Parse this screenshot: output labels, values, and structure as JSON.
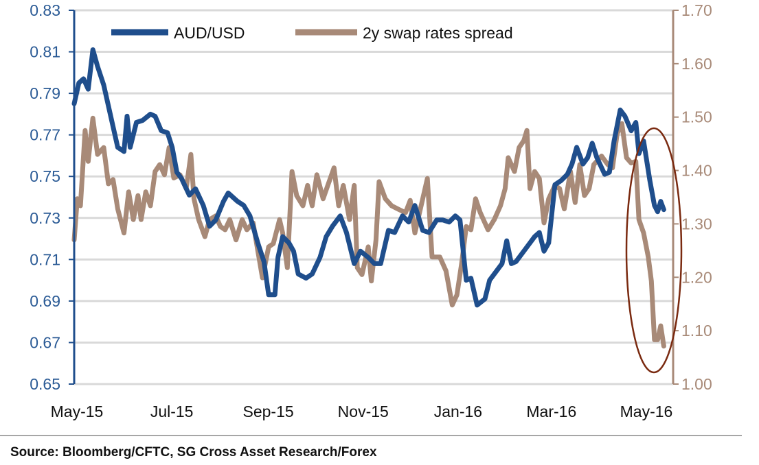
{
  "chart_data": {
    "type": "line",
    "title": "",
    "source": "Source: Bloomberg/CFTC, SG Cross Asset Research/Forex",
    "grid": true,
    "legend_placement": "top",
    "x_ticks": [
      "May-15",
      "Jul-15",
      "Sep-15",
      "Nov-15",
      "Jan-16",
      "Mar-16",
      "May-16"
    ],
    "x_tick_dates": [
      "2015-05-01",
      "2015-07-01",
      "2015-09-01",
      "2015-11-01",
      "2016-01-01",
      "2016-03-01",
      "2016-05-01"
    ],
    "y_left": {
      "ylim": [
        0.65,
        0.83
      ],
      "ticks": [
        "0.65",
        "0.67",
        "0.69",
        "0.71",
        "0.73",
        "0.75",
        "0.77",
        "0.79",
        "0.81",
        "0.83"
      ]
    },
    "y_right": {
      "ylim": [
        1.0,
        1.7
      ],
      "ticks": [
        "1.00",
        "1.10",
        "1.20",
        "1.30",
        "1.40",
        "1.50",
        "1.60",
        "1.70"
      ]
    },
    "annotation": {
      "type": "ellipse",
      "around": "late Apr-16 to mid May-16 divergence",
      "color": "#7a2a10"
    },
    "series": [
      {
        "name": "AUD/USD",
        "axis": "left",
        "color": "#1f4e8c",
        "points": [
          [
            "2015-05-01",
            0.785
          ],
          [
            "2015-05-04",
            0.795
          ],
          [
            "2015-05-07",
            0.797
          ],
          [
            "2015-05-10",
            0.792
          ],
          [
            "2015-05-13",
            0.811
          ],
          [
            "2015-05-16",
            0.803
          ],
          [
            "2015-05-20",
            0.794
          ],
          [
            "2015-05-23",
            0.784
          ],
          [
            "2015-05-26",
            0.774
          ],
          [
            "2015-05-29",
            0.764
          ],
          [
            "2015-06-02",
            0.762
          ],
          [
            "2015-06-04",
            0.779
          ],
          [
            "2015-06-06",
            0.764
          ],
          [
            "2015-06-10",
            0.776
          ],
          [
            "2015-06-14",
            0.777
          ],
          [
            "2015-06-19",
            0.78
          ],
          [
            "2015-06-22",
            0.779
          ],
          [
            "2015-06-26",
            0.772
          ],
          [
            "2015-06-30",
            0.771
          ],
          [
            "2015-07-03",
            0.764
          ],
          [
            "2015-07-06",
            0.752
          ],
          [
            "2015-07-09",
            0.749
          ],
          [
            "2015-07-14",
            0.741
          ],
          [
            "2015-07-18",
            0.744
          ],
          [
            "2015-07-23",
            0.736
          ],
          [
            "2015-07-27",
            0.726
          ],
          [
            "2015-07-31",
            0.729
          ],
          [
            "2015-08-05",
            0.738
          ],
          [
            "2015-08-08",
            0.742
          ],
          [
            "2015-08-14",
            0.738
          ],
          [
            "2015-08-18",
            0.736
          ],
          [
            "2015-08-22",
            0.731
          ],
          [
            "2015-08-27",
            0.718
          ],
          [
            "2015-08-31",
            0.709
          ],
          [
            "2015-09-03",
            0.693
          ],
          [
            "2015-09-07",
            0.693
          ],
          [
            "2015-09-09",
            0.711
          ],
          [
            "2015-09-12",
            0.721
          ],
          [
            "2015-09-16",
            0.718
          ],
          [
            "2015-09-19",
            0.714
          ],
          [
            "2015-09-22",
            0.703
          ],
          [
            "2015-09-27",
            0.701
          ],
          [
            "2015-10-01",
            0.703
          ],
          [
            "2015-10-06",
            0.711
          ],
          [
            "2015-10-10",
            0.721
          ],
          [
            "2015-10-14",
            0.726
          ],
          [
            "2015-10-19",
            0.731
          ],
          [
            "2015-10-23",
            0.723
          ],
          [
            "2015-10-28",
            0.708
          ],
          [
            "2015-11-01",
            0.714
          ],
          [
            "2015-11-06",
            0.711
          ],
          [
            "2015-11-10",
            0.708
          ],
          [
            "2015-11-14",
            0.708
          ],
          [
            "2015-11-19",
            0.724
          ],
          [
            "2015-11-23",
            0.723
          ],
          [
            "2015-11-28",
            0.731
          ],
          [
            "2015-12-02",
            0.728
          ],
          [
            "2015-12-06",
            0.736
          ],
          [
            "2015-12-11",
            0.724
          ],
          [
            "2015-12-15",
            0.723
          ],
          [
            "2015-12-20",
            0.729
          ],
          [
            "2015-12-24",
            0.729
          ],
          [
            "2015-12-28",
            0.728
          ],
          [
            "2016-01-01",
            0.731
          ],
          [
            "2016-01-04",
            0.729
          ],
          [
            "2016-01-08",
            0.7
          ],
          [
            "2016-01-11",
            0.701
          ],
          [
            "2016-01-15",
            0.688
          ],
          [
            "2016-01-20",
            0.691
          ],
          [
            "2016-01-23",
            0.7
          ],
          [
            "2016-01-26",
            0.703
          ],
          [
            "2016-01-31",
            0.708
          ],
          [
            "2016-02-03",
            0.719
          ],
          [
            "2016-02-06",
            0.708
          ],
          [
            "2016-02-09",
            0.709
          ],
          [
            "2016-02-13",
            0.713
          ],
          [
            "2016-02-16",
            0.716
          ],
          [
            "2016-02-21",
            0.721
          ],
          [
            "2016-02-24",
            0.723
          ],
          [
            "2016-02-27",
            0.714
          ],
          [
            "2016-03-01",
            0.718
          ],
          [
            "2016-03-05",
            0.746
          ],
          [
            "2016-03-09",
            0.748
          ],
          [
            "2016-03-13",
            0.751
          ],
          [
            "2016-03-16",
            0.756
          ],
          [
            "2016-03-19",
            0.764
          ],
          [
            "2016-03-23",
            0.756
          ],
          [
            "2016-03-26",
            0.759
          ],
          [
            "2016-03-29",
            0.766
          ],
          [
            "2016-04-01",
            0.759
          ],
          [
            "2016-04-06",
            0.751
          ],
          [
            "2016-04-09",
            0.752
          ],
          [
            "2016-04-12",
            0.767
          ],
          [
            "2016-04-16",
            0.782
          ],
          [
            "2016-04-19",
            0.779
          ],
          [
            "2016-04-23",
            0.772
          ],
          [
            "2016-04-26",
            0.776
          ],
          [
            "2016-04-28",
            0.761
          ],
          [
            "2016-05-01",
            0.767
          ],
          [
            "2016-05-05",
            0.748
          ],
          [
            "2016-05-08",
            0.736
          ],
          [
            "2016-05-10",
            0.733
          ],
          [
            "2016-05-12",
            0.738
          ],
          [
            "2016-05-14",
            0.734
          ]
        ]
      },
      {
        "name": "2y swap rates spread",
        "axis": "right",
        "color": "#a88a78",
        "points": [
          [
            "2015-05-01",
            1.27
          ],
          [
            "2015-05-03",
            1.347
          ],
          [
            "2015-05-05",
            1.334
          ],
          [
            "2015-05-08",
            1.475
          ],
          [
            "2015-05-10",
            1.417
          ],
          [
            "2015-05-13",
            1.498
          ],
          [
            "2015-05-16",
            1.43
          ],
          [
            "2015-05-20",
            1.443
          ],
          [
            "2015-05-23",
            1.375
          ],
          [
            "2015-05-26",
            1.383
          ],
          [
            "2015-05-29",
            1.328
          ],
          [
            "2015-06-02",
            1.283
          ],
          [
            "2015-06-05",
            1.36
          ],
          [
            "2015-06-08",
            1.308
          ],
          [
            "2015-06-11",
            1.353
          ],
          [
            "2015-06-13",
            1.308
          ],
          [
            "2015-06-16",
            1.36
          ],
          [
            "2015-06-19",
            1.334
          ],
          [
            "2015-06-22",
            1.398
          ],
          [
            "2015-06-25",
            1.411
          ],
          [
            "2015-06-28",
            1.392
          ],
          [
            "2015-07-01",
            1.443
          ],
          [
            "2015-07-04",
            1.386
          ],
          [
            "2015-07-08",
            1.392
          ],
          [
            "2015-07-12",
            1.366
          ],
          [
            "2015-07-15",
            1.43
          ],
          [
            "2015-07-17",
            1.347
          ],
          [
            "2015-07-20",
            1.308
          ],
          [
            "2015-07-24",
            1.276
          ],
          [
            "2015-07-27",
            1.308
          ],
          [
            "2015-07-31",
            1.315
          ],
          [
            "2015-08-03",
            1.295
          ],
          [
            "2015-08-06",
            1.289
          ],
          [
            "2015-08-09",
            1.308
          ],
          [
            "2015-08-13",
            1.27
          ],
          [
            "2015-08-17",
            1.308
          ],
          [
            "2015-08-20",
            1.289
          ],
          [
            "2015-08-24",
            1.302
          ],
          [
            "2015-08-27",
            1.25
          ],
          [
            "2015-08-30",
            1.199
          ],
          [
            "2015-09-03",
            1.257
          ],
          [
            "2015-09-06",
            1.263
          ],
          [
            "2015-09-10",
            1.308
          ],
          [
            "2015-09-12",
            1.283
          ],
          [
            "2015-09-15",
            1.218
          ],
          [
            "2015-09-18",
            1.398
          ],
          [
            "2015-09-21",
            1.353
          ],
          [
            "2015-09-25",
            1.334
          ],
          [
            "2015-09-28",
            1.372
          ],
          [
            "2015-10-01",
            1.334
          ],
          [
            "2015-10-04",
            1.392
          ],
          [
            "2015-10-08",
            1.347
          ],
          [
            "2015-10-11",
            1.372
          ],
          [
            "2015-10-15",
            1.405
          ],
          [
            "2015-10-18",
            1.334
          ],
          [
            "2015-10-21",
            1.372
          ],
          [
            "2015-10-25",
            1.308
          ],
          [
            "2015-10-28",
            1.372
          ],
          [
            "2015-10-30",
            1.218
          ],
          [
            "2015-11-02",
            1.205
          ],
          [
            "2015-11-06",
            1.257
          ],
          [
            "2015-11-08",
            1.193
          ],
          [
            "2015-11-11",
            1.27
          ],
          [
            "2015-11-13",
            1.379
          ],
          [
            "2015-11-17",
            1.347
          ],
          [
            "2015-11-21",
            1.334
          ],
          [
            "2015-11-25",
            1.328
          ],
          [
            "2015-11-30",
            1.321
          ],
          [
            "2015-12-03",
            1.344
          ],
          [
            "2015-12-06",
            1.283
          ],
          [
            "2015-12-10",
            1.334
          ],
          [
            "2015-12-14",
            1.385
          ],
          [
            "2015-12-17",
            1.238
          ],
          [
            "2015-12-22",
            1.238
          ],
          [
            "2015-12-26",
            1.212
          ],
          [
            "2015-12-30",
            1.148
          ],
          [
            "2016-01-02",
            1.167
          ],
          [
            "2016-01-05",
            1.225
          ],
          [
            "2016-01-08",
            1.295
          ],
          [
            "2016-01-11",
            1.289
          ],
          [
            "2016-01-14",
            1.347
          ],
          [
            "2016-01-17",
            1.321
          ],
          [
            "2016-01-22",
            1.289
          ],
          [
            "2016-01-26",
            1.308
          ],
          [
            "2016-01-30",
            1.334
          ],
          [
            "2016-02-02",
            1.366
          ],
          [
            "2016-02-04",
            1.424
          ],
          [
            "2016-02-08",
            1.398
          ],
          [
            "2016-02-11",
            1.443
          ],
          [
            "2016-02-14",
            1.456
          ],
          [
            "2016-02-16",
            1.475
          ],
          [
            "2016-02-18",
            1.366
          ],
          [
            "2016-02-21",
            1.398
          ],
          [
            "2016-02-24",
            1.385
          ],
          [
            "2016-02-27",
            1.302
          ],
          [
            "2016-03-01",
            1.347
          ],
          [
            "2016-03-05",
            1.372
          ],
          [
            "2016-03-08",
            1.366
          ],
          [
            "2016-03-11",
            1.328
          ],
          [
            "2016-03-15",
            1.398
          ],
          [
            "2016-03-18",
            1.34
          ],
          [
            "2016-03-21",
            1.411
          ],
          [
            "2016-03-24",
            1.353
          ],
          [
            "2016-03-27",
            1.366
          ],
          [
            "2016-03-30",
            1.411
          ],
          [
            "2016-04-04",
            1.427
          ],
          [
            "2016-04-08",
            1.411
          ],
          [
            "2016-04-11",
            1.405
          ],
          [
            "2016-04-14",
            1.469
          ],
          [
            "2016-04-17",
            1.488
          ],
          [
            "2016-04-20",
            1.424
          ],
          [
            "2016-04-23",
            1.414
          ],
          [
            "2016-04-26",
            1.417
          ],
          [
            "2016-04-28",
            1.308
          ],
          [
            "2016-05-01",
            1.283
          ],
          [
            "2016-05-04",
            1.238
          ],
          [
            "2016-05-06",
            1.193
          ],
          [
            "2016-05-08",
            1.083
          ],
          [
            "2016-05-10",
            1.083
          ],
          [
            "2016-05-12",
            1.109
          ],
          [
            "2016-05-14",
            1.071
          ]
        ]
      }
    ]
  }
}
